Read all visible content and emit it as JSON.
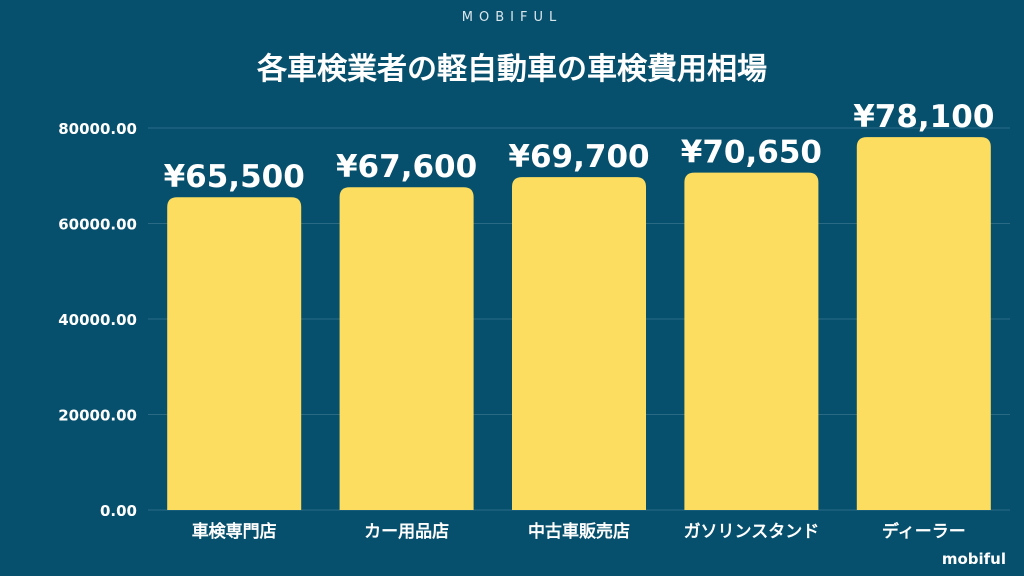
{
  "brand_top": "MOBIFUL",
  "brand_bottom": "mobiful",
  "colors": {
    "background": "#07506d",
    "bar": "#fddd60",
    "text": "#ffffff"
  },
  "chart_data": {
    "type": "bar",
    "title": "各車検業者の軽自動車の車検費用相場",
    "categories": [
      "車検専門店",
      "カー用品店",
      "中古車販売店",
      "ガソリンスタンド",
      "ディーラー"
    ],
    "values": [
      65500,
      67600,
      69700,
      70650,
      78100
    ],
    "data_labels": [
      "¥65,500",
      "¥67,600",
      "¥69,700",
      "¥70,650",
      "¥78,100"
    ],
    "yticks": [
      0,
      20000,
      40000,
      60000,
      80000
    ],
    "ytick_labels": [
      "0.00",
      "20000.00",
      "40000.00",
      "60000.00",
      "80000.00"
    ],
    "ylim": [
      0,
      80000
    ],
    "xlabel": "",
    "ylabel": "",
    "grid": true,
    "legend": "none"
  }
}
